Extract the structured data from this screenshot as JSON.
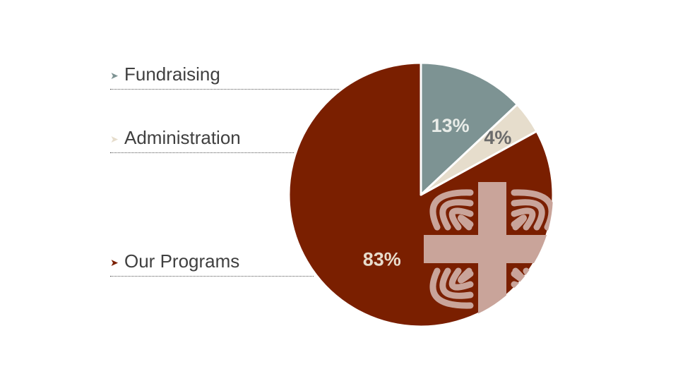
{
  "chart_data": {
    "type": "pie",
    "slices": [
      {
        "label": "Our Programs",
        "value": 83,
        "value_label": "83%",
        "color": "#7a1f00",
        "text_color": "#e8dccc"
      },
      {
        "label": "Administration",
        "value": 4,
        "value_label": "4%",
        "color": "#e6ddcc",
        "text_color": "#6b6b6b"
      },
      {
        "label": "Fundraising",
        "value": 13,
        "value_label": "13%",
        "color": "#7d9393",
        "text_color": "#e8ece8"
      }
    ],
    "legend_placement": "left",
    "start_angle": "12 o'clock, counterclockwise",
    "decoration": "caritas-flame-cross-logo"
  },
  "legend": {
    "fundraising": {
      "label": "Fundraising",
      "arrow_color": "#7d9393"
    },
    "administration": {
      "label": "Administration",
      "arrow_color": "#e6ddcc"
    },
    "programs": {
      "label": "Our Programs",
      "arrow_color": "#7a1f00"
    }
  },
  "logo": {
    "name": "caritas-cross-logo",
    "color": "#c9a49a"
  }
}
